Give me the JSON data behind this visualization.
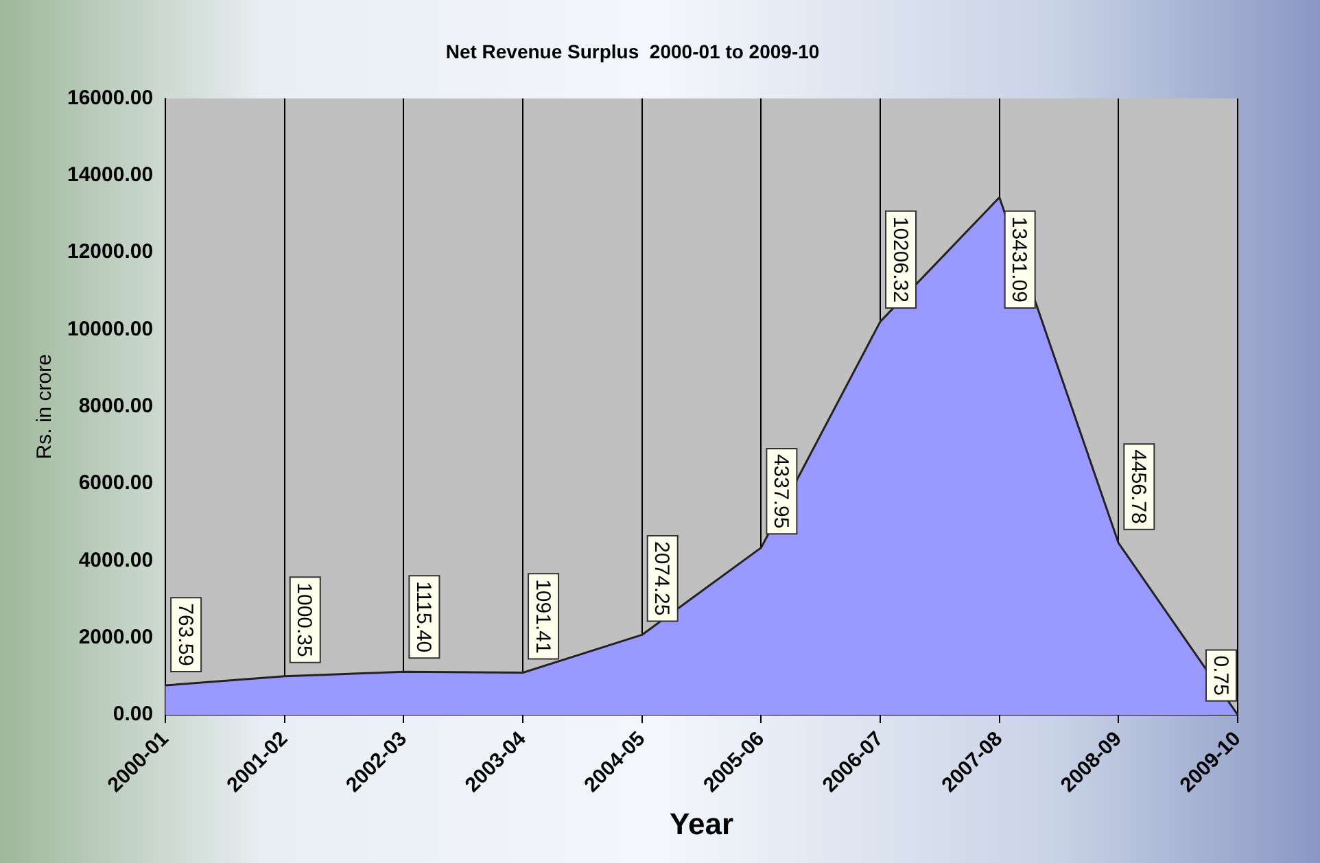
{
  "chart_data": {
    "type": "area",
    "title": "Net Revenue Surplus  2000-01 to 2009-10",
    "xlabel": "Year",
    "ylabel": "Rs. in crore",
    "categories": [
      "2000-01",
      "2001-02",
      "2002-03",
      "2003-04",
      "2004-05",
      "2005-06",
      "2006-07",
      "2007-08",
      "2008-09",
      "2009-10"
    ],
    "series": [
      {
        "color": "#9999ff",
        "values": [
          763.59,
          1000.35,
          1115.4,
          1091.41,
          2074.25,
          4337.95,
          10206.32,
          13431.09,
          4456.78,
          0.75
        ],
        "value_labels": [
          "763.59",
          "1000.35",
          "1115.40",
          "1091.41",
          "2074.25",
          "4337.95",
          "10206.32",
          "13431.09",
          "4456.78",
          "0.75"
        ]
      }
    ],
    "ylim": [
      0,
      16000
    ],
    "yticks": [
      {
        "value": 0,
        "label": "0.00"
      },
      {
        "value": 2000,
        "label": "2000.00"
      },
      {
        "value": 4000,
        "label": "4000.00"
      },
      {
        "value": 6000,
        "label": "6000.00"
      },
      {
        "value": 8000,
        "label": "8000.00"
      },
      {
        "value": 10000,
        "label": "10000.00"
      },
      {
        "value": 12000,
        "label": "12000.00"
      },
      {
        "value": 14000,
        "label": "14000.00"
      },
      {
        "value": 16000,
        "label": "16000.00"
      }
    ],
    "grid": "x",
    "legend": false,
    "marker": "none",
    "line_style": "solid"
  }
}
